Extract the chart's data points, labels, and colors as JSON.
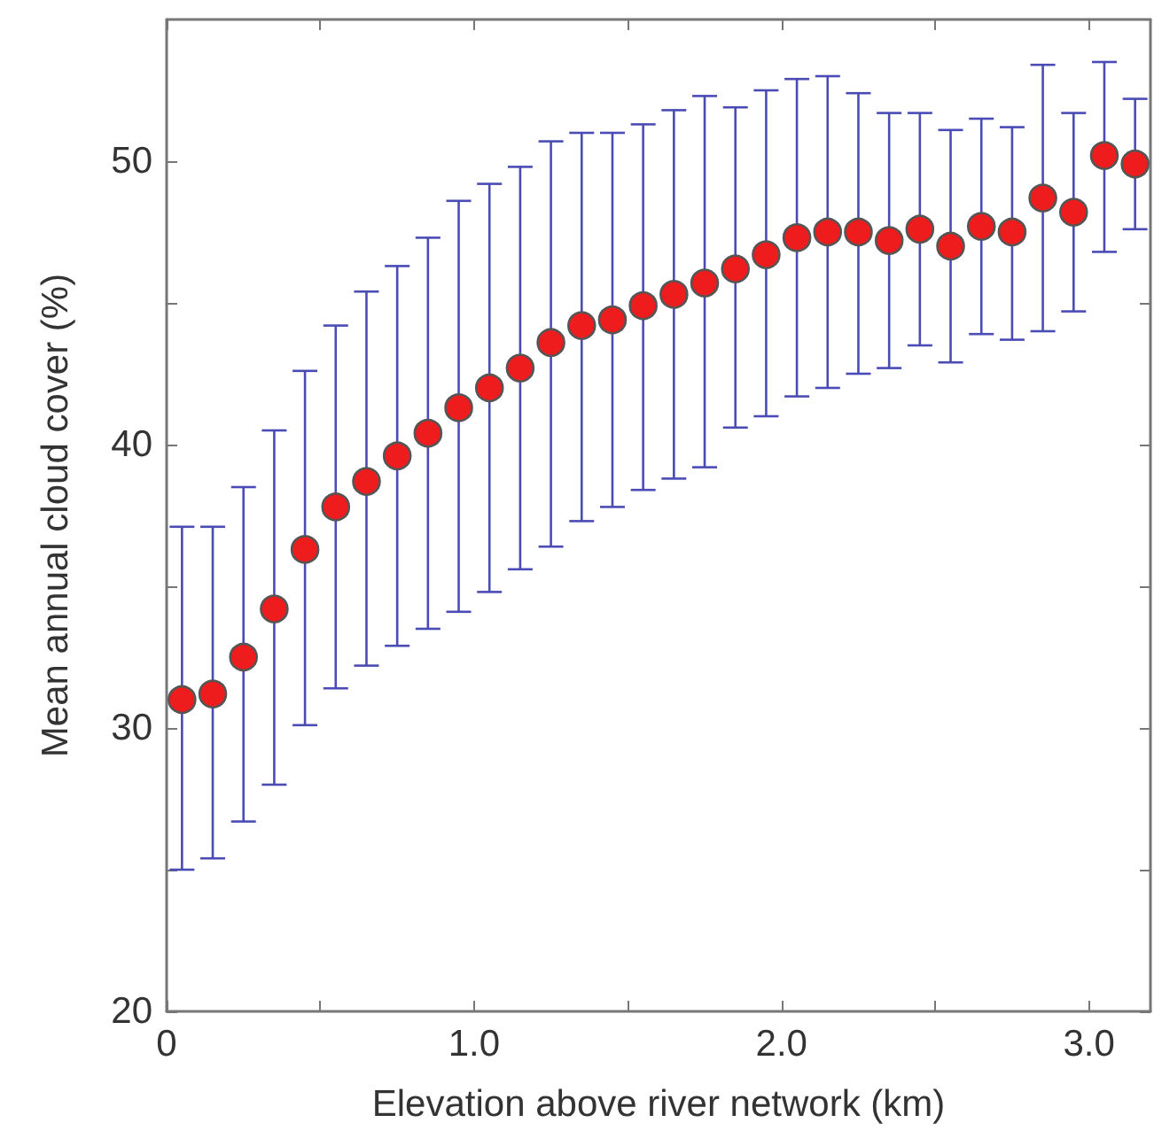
{
  "chart_data": {
    "type": "scatter",
    "xlabel": "Elevation above river network (km)",
    "ylabel": "Mean annual cloud cover (%)",
    "x": [
      0.05,
      0.15,
      0.25,
      0.35,
      0.45,
      0.55,
      0.65,
      0.75,
      0.85,
      0.95,
      1.05,
      1.15,
      1.25,
      1.35,
      1.45,
      1.55,
      1.65,
      1.75,
      1.85,
      1.95,
      2.05,
      2.15,
      2.25,
      2.35,
      2.45,
      2.55,
      2.65,
      2.75,
      2.85,
      2.95,
      3.05,
      3.15
    ],
    "series": [
      {
        "color": "#ee1c1c",
        "values": [
          31.0,
          31.2,
          32.5,
          34.2,
          36.3,
          37.8,
          38.7,
          39.6,
          40.4,
          41.3,
          42.0,
          42.7,
          43.6,
          44.2,
          44.4,
          44.9,
          45.3,
          45.7,
          46.2,
          46.7,
          47.3,
          47.5,
          47.5,
          47.2,
          47.6,
          47.0,
          47.7,
          47.5,
          48.7,
          48.2,
          50.2,
          49.9
        ],
        "errors": [
          [
            25.0,
            37.1
          ],
          [
            25.4,
            37.1
          ],
          [
            26.7,
            38.5
          ],
          [
            28.0,
            40.5
          ],
          [
            30.1,
            42.6
          ],
          [
            31.4,
            44.2
          ],
          [
            32.2,
            45.4
          ],
          [
            32.9,
            46.3
          ],
          [
            33.5,
            47.3
          ],
          [
            34.1,
            48.6
          ],
          [
            34.8,
            49.2
          ],
          [
            35.6,
            49.8
          ],
          [
            36.4,
            50.7
          ],
          [
            37.3,
            51.0
          ],
          [
            37.8,
            51.0
          ],
          [
            38.4,
            51.3
          ],
          [
            38.8,
            51.8
          ],
          [
            39.2,
            52.3
          ],
          [
            40.6,
            51.9
          ],
          [
            41.0,
            52.5
          ],
          [
            41.7,
            52.9
          ],
          [
            42.0,
            53.0
          ],
          [
            42.5,
            52.4
          ],
          [
            42.7,
            51.7
          ],
          [
            43.5,
            51.7
          ],
          [
            42.9,
            51.1
          ],
          [
            43.9,
            51.5
          ],
          [
            43.7,
            51.2
          ],
          [
            44.0,
            53.4
          ],
          [
            44.7,
            51.7
          ],
          [
            46.8,
            53.5
          ],
          [
            47.6,
            52.2
          ]
        ]
      }
    ],
    "xlim": [
      0,
      3.2
    ],
    "ylim": [
      20,
      55
    ],
    "xticks": [
      0,
      {
        "value": 0.5,
        "label": null
      },
      {
        "value": 1.0,
        "label": "1.0"
      },
      {
        "value": 1.5,
        "label": null
      },
      {
        "value": 2.0,
        "label": "2.0"
      },
      {
        "value": 2.5,
        "label": null
      },
      {
        "value": 3.0,
        "label": "3.0"
      }
    ],
    "yticks": [
      20,
      {
        "value": 25,
        "label": null
      },
      30,
      {
        "value": 35,
        "label": null
      },
      40,
      {
        "value": 45,
        "label": null
      },
      50
    ],
    "grid": false,
    "marker": "circle"
  }
}
